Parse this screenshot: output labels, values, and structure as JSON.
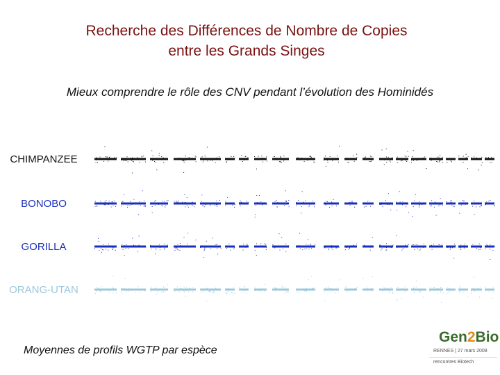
{
  "title": {
    "line1": "Recherche des Différences de Nombre de Copies",
    "line2": "entre les Grands Singes"
  },
  "subtitle": "Mieux comprendre le rôle des CNV pendant l’évolution des Hominidés",
  "species": [
    {
      "name": "CHIMPANZEE",
      "color": "#111111"
    },
    {
      "name": "BONOBO",
      "color": "#1a2fb8"
    },
    {
      "name": "GORILLA",
      "color": "#1a2fb8"
    },
    {
      "name": "ORANG-UTAN",
      "color": "#9cc8dc"
    }
  ],
  "footer": "Moyennes de profils WGTP par espèce",
  "logo": {
    "gen": "Gen",
    "two": "2",
    "bio": "Bio",
    "date": "RENNES | 27 mars 2008",
    "sub": "rencontres Biotech"
  }
}
